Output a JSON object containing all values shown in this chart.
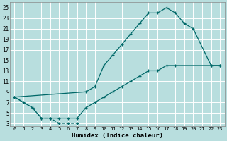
{
  "xlabel": "Humidex (Indice chaleur)",
  "bg_color": "#b8dede",
  "line_color": "#006868",
  "xlim": [
    -0.5,
    23.5
  ],
  "ylim": [
    2.5,
    26
  ],
  "xticks": [
    0,
    1,
    2,
    3,
    4,
    5,
    6,
    7,
    8,
    9,
    10,
    11,
    12,
    13,
    14,
    15,
    16,
    17,
    18,
    19,
    20,
    21,
    22,
    23
  ],
  "yticks": [
    3,
    5,
    7,
    9,
    11,
    13,
    15,
    17,
    19,
    21,
    23,
    25
  ],
  "line1_x": [
    0,
    1,
    2,
    3,
    4,
    5,
    6,
    7
  ],
  "line1_y": [
    8,
    7,
    6,
    4,
    4,
    3,
    3,
    3
  ],
  "line2_x": [
    0,
    8,
    9,
    10,
    11,
    12,
    13,
    14,
    15,
    16,
    17,
    18,
    19,
    20,
    22,
    23
  ],
  "line2_y": [
    8,
    9,
    10,
    14,
    16,
    18,
    20,
    22,
    24,
    24,
    25,
    24,
    22,
    21,
    14,
    14
  ],
  "line3_x": [
    0,
    2,
    3,
    4,
    5,
    6,
    7,
    8,
    9,
    10,
    11,
    12,
    13,
    14,
    15,
    16,
    17,
    18,
    22,
    23
  ],
  "line3_y": [
    8,
    6,
    4,
    4,
    4,
    4,
    4,
    6,
    7,
    8,
    9,
    10,
    11,
    12,
    13,
    13,
    14,
    14,
    14,
    14
  ]
}
